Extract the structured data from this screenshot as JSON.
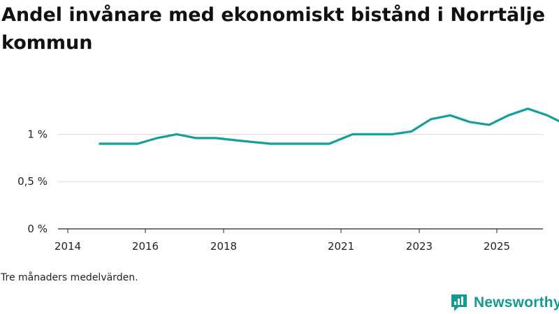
{
  "chart_data": {
    "type": "line",
    "title": "Andel invånare med ekonomiskt bistånd i Norrtälje kommun",
    "xlabel": "",
    "ylabel": "",
    "x_ticks": [
      "2014",
      "2016",
      "2018",
      "2021",
      "2023",
      "2025"
    ],
    "y_ticks": [
      "0 %",
      "0,5 %",
      "1 %"
    ],
    "y_tick_values": [
      0,
      0.5,
      1.0
    ],
    "ylim": [
      0,
      1.35
    ],
    "grid": true,
    "series": [
      {
        "name": "Andel invånare med ekonomiskt bistånd",
        "color": "#14a098",
        "x": [
          0.4,
          0.65,
          0.9,
          1.15,
          1.4,
          1.65,
          1.9,
          2.15,
          2.4,
          2.65,
          2.9,
          3.15,
          3.4,
          3.65,
          3.9,
          4.15,
          4.4,
          4.65,
          4.9,
          5.15,
          5.4,
          5.65,
          5.9,
          6.15,
          6.4,
          6.65,
          6.9,
          7.15,
          7.4,
          7.65,
          7.9,
          8.15,
          8.4,
          8.65,
          8.9,
          9.15,
          9.4,
          9.65,
          9.9,
          10.15,
          10.4,
          10.65,
          10.9,
          11.15,
          11.4,
          11.65,
          11.9,
          12.15,
          12.4,
          12.65,
          12.9,
          13.15,
          13.4,
          13.65,
          13.9,
          14.15,
          14.4,
          14.65,
          14.9,
          15.15,
          15.4,
          15.65,
          15.9,
          16.15,
          16.4
        ],
        "values": [
          0.9,
          0.9,
          0.9,
          0.96,
          1.0,
          0.96,
          0.96,
          0.93,
          0.9,
          0.9,
          0.9,
          1.0,
          1.0,
          1.0,
          1.03,
          1.16,
          1.2,
          1.13,
          1.1,
          1.2,
          1.27,
          1.2,
          1.1,
          1.1,
          1.2,
          1.13,
          1.06,
          1.2,
          1.2,
          1.16,
          1.06,
          1.1,
          1.1,
          1.03,
          0.93,
          0.9,
          1.0,
          0.93,
          0.9,
          0.9,
          0.9,
          0.9,
          0.8,
          0.8,
          0.8,
          0.7,
          0.7,
          0.7,
          0.7,
          0.7,
          0.7,
          0.7,
          0.7,
          0.7,
          0.7,
          0.7,
          0.7,
          0.7,
          0.7,
          0.7,
          0.7,
          0.7,
          0.7,
          0.7,
          0.7
        ]
      }
    ],
    "note": "Tre månaders medelvärden."
  },
  "brand": {
    "name": "Newsworthy",
    "color": "#159a91"
  }
}
